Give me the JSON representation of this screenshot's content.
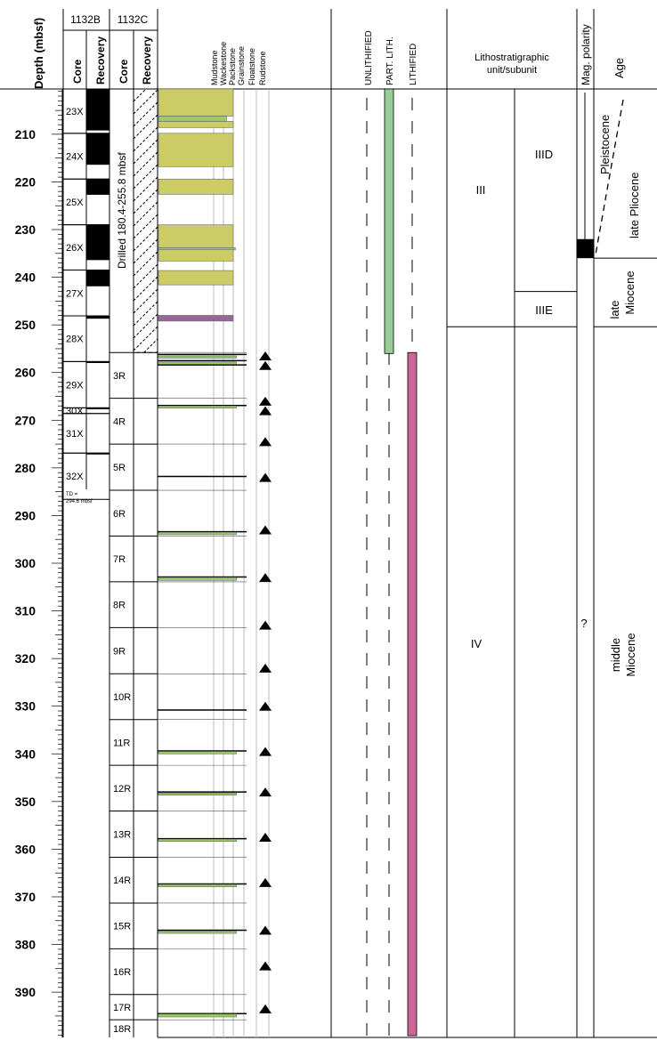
{
  "headers": {
    "depth": "Depth (mbsf)",
    "site_b": "1132B",
    "site_c": "1132C",
    "core": "Core",
    "recovery": "Recovery",
    "textures": [
      "Mudstone",
      "Wackestone",
      "Packstone",
      "Grainstone",
      "Floatstone",
      "Rudstone"
    ],
    "unlithified": "UNLITHIFIED",
    "part_lith": "PART. LITH.",
    "lithified": "LITHIFIED",
    "litho_title_line1": "Lithostratigraphic",
    "litho_title_line2": "unit/subunit",
    "mag_polarity": "Mag. polarity",
    "age": "Age"
  },
  "depth_axis": {
    "top": 200.5,
    "bottom": 399.5,
    "labeled_ticks": [
      210,
      220,
      230,
      240,
      250,
      260,
      270,
      280,
      290,
      300,
      310,
      320,
      330,
      340,
      350,
      360,
      370,
      380,
      390
    ]
  },
  "hole_1132B": {
    "cores": [
      {
        "label": "23X",
        "top": 200.5,
        "bottom": 209.8
      },
      {
        "label": "24X",
        "top": 209.8,
        "bottom": 219.4
      },
      {
        "label": "25X",
        "top": 219.4,
        "bottom": 229.0
      },
      {
        "label": "26X",
        "top": 229.0,
        "bottom": 238.5
      },
      {
        "label": "27X",
        "top": 238.5,
        "bottom": 248.1
      },
      {
        "label": "28X",
        "top": 248.1,
        "bottom": 257.7
      },
      {
        "label": "29X",
        "top": 257.7,
        "bottom": 267.4
      },
      {
        "label": "30X",
        "top": 267.4,
        "bottom": 268.6
      },
      {
        "label": "31X",
        "top": 268.6,
        "bottom": 276.9
      },
      {
        "label": "32X",
        "top": 276.9,
        "bottom": 286.6
      }
    ],
    "recovery": [
      {
        "top": 200.5,
        "bottom": 209.2
      },
      {
        "top": 209.8,
        "bottom": 216.4
      },
      {
        "top": 219.4,
        "bottom": 222.7
      },
      {
        "top": 229.0,
        "bottom": 236.4
      },
      {
        "top": 238.5,
        "bottom": 241.9
      },
      {
        "top": 248.1,
        "bottom": 248.7
      },
      {
        "top": 257.7,
        "bottom": 258.0
      },
      {
        "top": 267.4,
        "bottom": 267.7
      },
      {
        "top": 276.9,
        "bottom": 277.1
      }
    ],
    "td_label_line1": "TD =",
    "td_label_line2": "294.6 mbsf"
  },
  "hole_1132C": {
    "drilled_label": "Drilled 180.4-255.8 mbsf",
    "drilled_top": 200.5,
    "drilled_bottom": 255.8,
    "cores": [
      {
        "label": "3R",
        "top": 255.8,
        "bottom": 265.4
      },
      {
        "label": "4R",
        "top": 265.4,
        "bottom": 275.0
      },
      {
        "label": "5R",
        "top": 275.0,
        "bottom": 284.7
      },
      {
        "label": "6R",
        "top": 284.7,
        "bottom": 294.3
      },
      {
        "label": "7R",
        "top": 294.3,
        "bottom": 303.9
      },
      {
        "label": "8R",
        "top": 303.9,
        "bottom": 313.5
      },
      {
        "label": "9R",
        "top": 313.5,
        "bottom": 323.2
      },
      {
        "label": "10R",
        "top": 323.2,
        "bottom": 332.8
      },
      {
        "label": "11R",
        "top": 332.8,
        "bottom": 342.4
      },
      {
        "label": "12R",
        "top": 342.4,
        "bottom": 352.0
      },
      {
        "label": "13R",
        "top": 352.0,
        "bottom": 361.7
      },
      {
        "label": "14R",
        "top": 361.7,
        "bottom": 371.3
      },
      {
        "label": "15R",
        "top": 371.3,
        "bottom": 380.9
      },
      {
        "label": "16R",
        "top": 380.9,
        "bottom": 390.5
      },
      {
        "label": "17R",
        "top": 390.5,
        "bottom": 395.8
      },
      {
        "label": "18R",
        "top": 395.8,
        "bottom": 399.5
      }
    ]
  },
  "lithology": {
    "colors": {
      "wackestone": "#cccc66",
      "thin_layer": "#99cc66",
      "purple": "#996699",
      "outline": "#666666"
    },
    "texture_class_count": 6,
    "beds": [
      {
        "top": 200.5,
        "bottom": 206.2,
        "texture": 3.0,
        "color": "wackestone"
      },
      {
        "top": 206.2,
        "bottom": 207.3,
        "texture": 2.3,
        "color": "thin_layer"
      },
      {
        "top": 207.3,
        "bottom": 208.6,
        "texture": 3.0,
        "color": "wackestone"
      },
      {
        "top": 209.8,
        "bottom": 216.8,
        "texture": 3.0,
        "color": "wackestone"
      },
      {
        "top": 219.4,
        "bottom": 222.6,
        "texture": 3.0,
        "color": "wackestone"
      },
      {
        "top": 229.0,
        "bottom": 233.8,
        "texture": 3.0,
        "color": "wackestone"
      },
      {
        "top": 233.8,
        "bottom": 234.2,
        "texture": 3.2,
        "color": "thin_layer"
      },
      {
        "top": 234.2,
        "bottom": 236.6,
        "texture": 3.0,
        "color": "wackestone"
      },
      {
        "top": 238.6,
        "bottom": 241.6,
        "texture": 3.0,
        "color": "wackestone"
      },
      {
        "top": 248.0,
        "bottom": 249.2,
        "texture": 3.0,
        "color": "purple"
      },
      {
        "top": 256.5,
        "bottom": 256.9,
        "texture": 3.3,
        "color": "thin_layer"
      },
      {
        "top": 257.8,
        "bottom": 258.2,
        "texture": 3.3,
        "color": "thin_layer"
      },
      {
        "top": 267.0,
        "bottom": 267.3,
        "texture": 3.3,
        "color": "thin_layer"
      },
      {
        "top": 293.5,
        "bottom": 294.0,
        "texture": 3.3,
        "color": "thin_layer"
      },
      {
        "top": 303.0,
        "bottom": 303.6,
        "texture": 3.3,
        "color": "thin_layer"
      },
      {
        "top": 339.5,
        "bottom": 340.0,
        "texture": 3.3,
        "color": "thin_layer"
      },
      {
        "top": 348.2,
        "bottom": 348.6,
        "texture": 3.3,
        "color": "thin_layer"
      },
      {
        "top": 357.9,
        "bottom": 358.3,
        "texture": 3.3,
        "color": "thin_layer"
      },
      {
        "top": 367.4,
        "bottom": 367.9,
        "texture": 3.3,
        "color": "thin_layer"
      },
      {
        "top": 377.2,
        "bottom": 377.6,
        "texture": 3.3,
        "color": "thin_layer"
      },
      {
        "top": 394.6,
        "bottom": 395.2,
        "texture": 3.3,
        "color": "thin_layer"
      }
    ],
    "contacts": [
      256.2,
      257.5,
      258.4,
      266.9,
      281.8,
      293.4,
      302.9,
      330.8,
      339.4,
      348.0,
      357.8,
      367.3,
      377.0,
      394.5
    ],
    "triangles": [
      256.5,
      258.5,
      266.0,
      268.0,
      274.5,
      282.0,
      293.0,
      303.0,
      313.0,
      322.0,
      330.0,
      339.5,
      348.0,
      357.5,
      367.0,
      377.0,
      384.5,
      393.5
    ]
  },
  "lithification": {
    "part_lith": {
      "top": 200.5,
      "bottom": 256.0,
      "color": "#99cc99"
    },
    "lithified": {
      "top": 255.8,
      "bottom": 399.5,
      "color": "#cc6699"
    }
  },
  "litho_units": {
    "boundary_IIIE": 243.0,
    "boundary_IV": 250.4,
    "labels": {
      "III": "III",
      "IIID": "IIID",
      "IIIE": "IIIE",
      "IV": "IV"
    }
  },
  "mag_polarity": {
    "normal_interval": {
      "top": 232.0,
      "bottom": 236.0
    },
    "question_mark": "?"
  },
  "age": {
    "pleistocene": "Pleistocene",
    "late_pliocene": "late Pliocene",
    "late_miocene_line1": "late",
    "late_miocene_line2": "Miocene",
    "middle_miocene_line1": "middle",
    "middle_miocene_line2": "Miocene",
    "boundary_miocene": 236.0,
    "boundary_middle_miocene": 250.4
  }
}
